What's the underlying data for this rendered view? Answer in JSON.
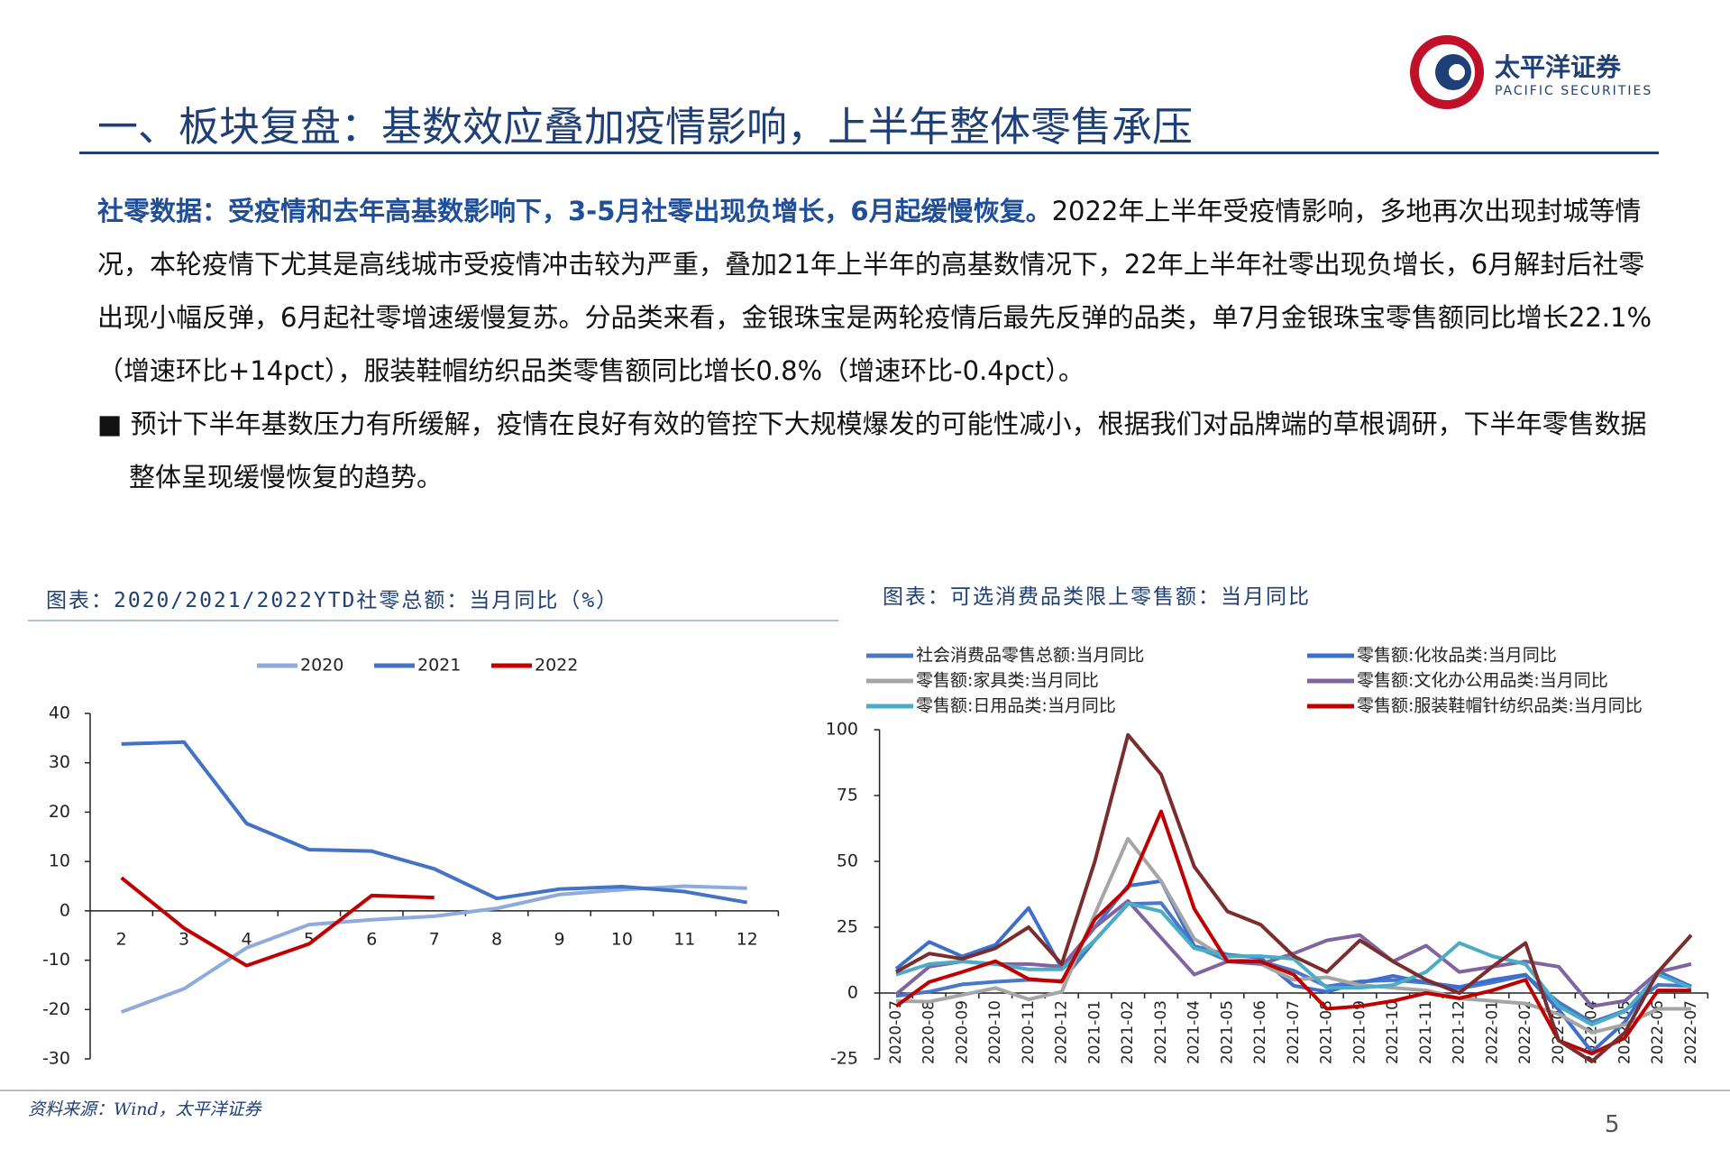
{
  "header": {
    "title": "一、板块复盘：基数效应叠加疫情影响，上半年整体零售承压",
    "logo_cn": "太平洋证券",
    "logo_en": "PACIFIC SECURITIES"
  },
  "body": {
    "lead": "社零数据：受疫情和去年高基数影响下，3-5月社零出现负增长，6月起缓慢恢复。",
    "text": "2022年上半年受疫情影响，多地再次出现封城等情况，本轮疫情下尤其是高线城市受疫情冲击较为严重，叠加21年上半年的高基数情况下，22年上半年社零出现负增长，6月解封后社零出现小幅反弹，6月起社零增速缓慢复苏。分品类来看，金银珠宝是两轮疫情后最先反弹的品类，单7月金银珠宝零售额同比增长22.1%（增速环比+14pct），服装鞋帽纺织品类零售额同比增长0.8%（增速环比-0.4pct）。",
    "bullet": "■ 预计下半年基数压力有所缓解，疫情在良好有效的管控下大规模爆发的可能性减小，根据我们对品牌端的草根调研，下半年零售数据整体呈现缓慢恢复的趋势。"
  },
  "footer": {
    "source": "资料来源：Wind，太平洋证券",
    "page": "5"
  },
  "chart_data": [
    {
      "type": "line",
      "title": "图表：2020/2021/2022YTD社零总额：当月同比（%）",
      "categories": [
        "2",
        "3",
        "4",
        "5",
        "6",
        "7",
        "8",
        "9",
        "10",
        "11",
        "12"
      ],
      "ylim": [
        -30,
        40
      ],
      "yticks": [
        -30,
        -20,
        -10,
        0,
        10,
        20,
        30,
        40
      ],
      "legend": "top",
      "series": [
        {
          "name": "2020",
          "color": "#8faadc",
          "values": [
            -20.5,
            -15.8,
            -7.5,
            -2.8,
            -1.8,
            -1.1,
            0.5,
            3.3,
            4.3,
            5.0,
            4.6
          ]
        },
        {
          "name": "2021",
          "color": "#4472c4",
          "values": [
            33.8,
            34.2,
            17.7,
            12.4,
            12.1,
            8.5,
            2.5,
            4.4,
            4.9,
            3.9,
            1.7
          ]
        },
        {
          "name": "2022",
          "color": "#c00000",
          "values": [
            6.7,
            -3.5,
            -11.1,
            -6.7,
            3.1,
            2.7,
            null,
            null,
            null,
            null,
            null
          ]
        }
      ]
    },
    {
      "type": "line",
      "title": "图表：可选消费品类限上零售额：当月同比",
      "categories": [
        "2020-07",
        "2020-08",
        "2020-09",
        "2020-10",
        "2020-11",
        "2020-12",
        "2021-01",
        "2021-02",
        "2021-03",
        "2021-04",
        "2021-05",
        "2021-06",
        "2021-07",
        "2021-08",
        "2021-09",
        "2021-10",
        "2021-11",
        "2021-12",
        "2022-01",
        "2022-02",
        "2022-03",
        "2022-04",
        "2022-05",
        "2022-06",
        "2022-07"
      ],
      "ylim": [
        -25,
        100
      ],
      "yticks": [
        -25,
        0,
        25,
        50,
        75,
        100
      ],
      "legend": "top",
      "series": [
        {
          "name": "社会消费品零售总额:当月同比",
          "color": "#4a78c8",
          "values": [
            -1.1,
            0.5,
            3.3,
            4.3,
            5.0,
            4.6,
            20,
            33.8,
            34.2,
            17.7,
            12.4,
            12.1,
            8.5,
            2.5,
            4.4,
            4.9,
            3.9,
            1.7,
            4,
            6.7,
            -3.5,
            -11.1,
            -6.7,
            3.1,
            2.7
          ]
        },
        {
          "name": "零售额:化妆品类:当月同比",
          "color": "#3f6fcc",
          "values": [
            9.2,
            19.4,
            13.9,
            18.3,
            32.3,
            9.4,
            25,
            40.7,
            42.5,
            17.8,
            14.6,
            13.4,
            2.8,
            0.5,
            3.9,
            6.5,
            4.0,
            2.3,
            5,
            7.0,
            -6.3,
            -22.3,
            -11.0,
            8.1,
            2.5
          ]
        },
        {
          "name": "零售额:家具类:当月同比",
          "color": "#a5a5a5",
          "values": [
            -3,
            -3.3,
            -0.7,
            1.9,
            -2.4,
            0.5,
            30,
            58.6,
            42.5,
            20.6,
            12.6,
            11.1,
            5.0,
            6,
            3,
            2,
            1,
            -2,
            -3,
            -4,
            -8,
            -15,
            -12,
            -6,
            -6
          ]
        },
        {
          "name": "零售额:文化办公用品类:当月同比",
          "color": "#8064a2",
          "values": [
            -0.5,
            10,
            12,
            11,
            11,
            10,
            25,
            35,
            21,
            7,
            12,
            11,
            15,
            20,
            22,
            12,
            18,
            8,
            10,
            12,
            10,
            -5,
            -3,
            8,
            11
          ]
        },
        {
          "name": "零售额:日用品类:当月同比",
          "color": "#4bacc6",
          "values": [
            7,
            11,
            12,
            11,
            9,
            9,
            20,
            34,
            31,
            17,
            14,
            14,
            13,
            2,
            2,
            3,
            8,
            19,
            14,
            11,
            -5,
            -12,
            -7,
            7,
            2
          ]
        },
        {
          "name": "零售额:服装鞋帽针纺织品类:当月同比",
          "color": "#c00000",
          "values": [
            -5.0,
            4.2,
            8.0,
            12.1,
            5.3,
            4.3,
            28,
            40,
            69,
            32,
            12,
            12,
            7,
            -6,
            -5,
            -3,
            0,
            -2,
            1,
            5,
            -18,
            -23,
            -17,
            1,
            1
          ]
        },
        {
          "color": "#7b2c2c",
          "values": [
            8,
            15,
            13,
            17,
            25,
            11,
            50,
            98,
            83,
            48,
            31,
            26,
            14,
            8,
            20,
            12,
            5,
            0,
            10,
            19,
            -18,
            -26,
            -15,
            8,
            22
          ]
        }
      ]
    }
  ]
}
